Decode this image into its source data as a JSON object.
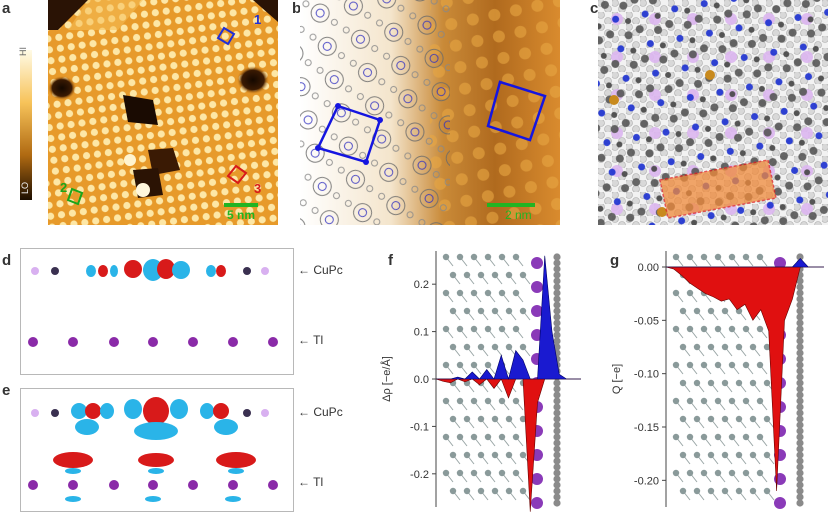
{
  "panel_letters": {
    "a": "a",
    "b": "b",
    "c": "c",
    "d": "d",
    "e": "e",
    "f": "f",
    "g": "g"
  },
  "panel_a": {
    "colorbar_hi": "HI",
    "colorbar_lo": "LO",
    "domain_1": "1",
    "domain_2": "2",
    "domain_3": "3",
    "scale_bar": "5 nm",
    "colors": {
      "domain_1": "#1e2fd8",
      "domain_2": "#1aa61a",
      "domain_3": "#d81a1a",
      "scale_bar": "#22b422"
    }
  },
  "panel_b": {
    "scale_bar": "2 nm",
    "colors": {
      "unit_cell": "#1515e0",
      "scale_bar": "#22b422"
    }
  },
  "panel_d": {
    "label_cupc": "CuPc",
    "label_tl": "Tl"
  },
  "panel_e": {
    "label_cupc": "CuPc",
    "label_tl": "Tl"
  },
  "chart_data": [
    {
      "panel": "f",
      "type": "area",
      "ylabel": "Δρ [−e/Å]",
      "yticks": [
        "0.2",
        "0.1",
        "0.0",
        "-0.1",
        "-0.2"
      ],
      "yvalues": [
        0.2,
        0.1,
        0.0,
        -0.1,
        -0.2
      ],
      "ylim": [
        -0.27,
        0.27
      ],
      "colors": {
        "positive": "#1a1ad0",
        "negative": "#e01010"
      },
      "series": [
        {
          "x": [
            0.0,
            0.05,
            0.1,
            0.15,
            0.2,
            0.25,
            0.3,
            0.35,
            0.4,
            0.45,
            0.5,
            0.55,
            0.6,
            0.65,
            0.7,
            0.75,
            0.8,
            0.85,
            0.9,
            0.95,
            1.0
          ],
          "values": [
            0.0,
            -0.005,
            -0.008,
            0.004,
            -0.006,
            0.015,
            -0.012,
            0.02,
            -0.02,
            0.05,
            -0.04,
            0.06,
            0.04,
            -0.28,
            -0.05,
            0.26,
            0.1,
            0.01,
            0.0,
            0.0,
            0.0
          ]
        }
      ]
    },
    {
      "panel": "g",
      "type": "area",
      "ylabel": "Q [−e]",
      "yticks": [
        "0.00",
        "-0.05",
        "-0.10",
        "-0.15",
        "-0.20"
      ],
      "yvalues": [
        0.0,
        -0.05,
        -0.1,
        -0.15,
        -0.2
      ],
      "ylim": [
        -0.225,
        0.015
      ],
      "colors": {
        "positive": "#1a1ad0",
        "negative": "#e01010"
      },
      "series": [
        {
          "x": [
            0.0,
            0.05,
            0.1,
            0.15,
            0.2,
            0.25,
            0.3,
            0.35,
            0.4,
            0.45,
            0.5,
            0.55,
            0.6,
            0.65,
            0.7,
            0.75,
            0.8,
            0.85,
            0.9,
            0.95,
            1.0
          ],
          "values": [
            0.0,
            -0.002,
            -0.008,
            -0.015,
            -0.02,
            -0.025,
            -0.028,
            -0.032,
            -0.03,
            -0.04,
            -0.035,
            -0.05,
            -0.04,
            -0.06,
            -0.21,
            -0.05,
            -0.03,
            0.008,
            0.0,
            0.0,
            0.0
          ]
        }
      ]
    }
  ]
}
